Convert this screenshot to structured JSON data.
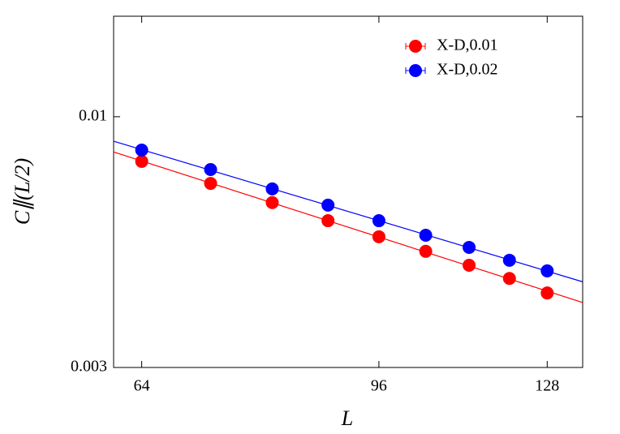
{
  "chart_data": {
    "type": "scatter",
    "xlabel": "L",
    "ylabel": "C∥(L/2)",
    "xscale": "log",
    "yscale": "log",
    "xlim": [
      61,
      136
    ],
    "ylim": [
      0.003,
      0.0162
    ],
    "xticks": [
      64,
      96,
      128
    ],
    "yticks": [
      0.003,
      0.01
    ],
    "legend": "top-right",
    "fit_lines": true,
    "series": [
      {
        "name": "X-D,0.01",
        "color": "#ff0000",
        "x": [
          64,
          72,
          80,
          88,
          96,
          104,
          112,
          120,
          128
        ],
        "values": [
          0.00807,
          0.00726,
          0.00662,
          0.00607,
          0.00562,
          0.00524,
          0.0049,
          0.0046,
          0.00429
        ]
      },
      {
        "name": "X-D,0.02",
        "color": "#0000ff",
        "x": [
          64,
          72,
          80,
          88,
          96,
          104,
          112,
          120,
          128
        ],
        "values": [
          0.00852,
          0.00776,
          0.00707,
          0.00654,
          0.00607,
          0.00566,
          0.00534,
          0.00502,
          0.00477
        ]
      }
    ]
  }
}
